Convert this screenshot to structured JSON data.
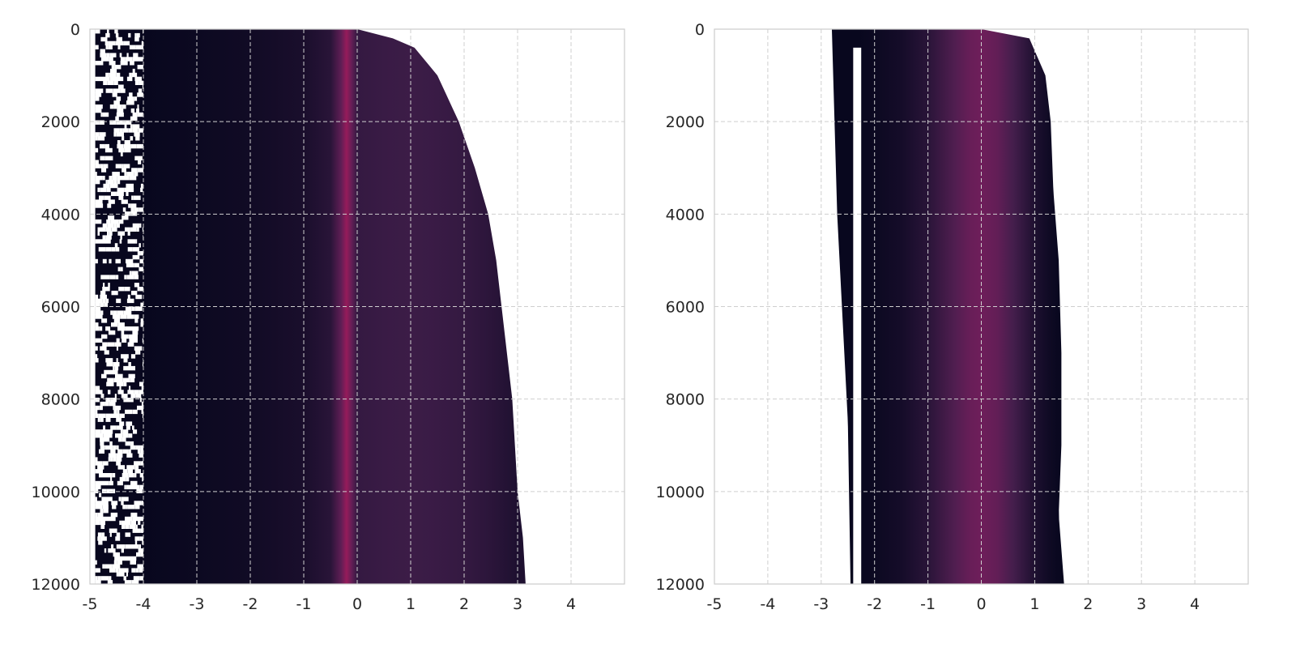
{
  "chart_data": [
    {
      "type": "heatmap",
      "panel": "left",
      "xlim": [
        -5,
        5
      ],
      "ylim": [
        0,
        12000
      ],
      "y_inverted": true,
      "xticks": [
        -5,
        -4,
        -3,
        -2,
        -1,
        0,
        1,
        2,
        3,
        4
      ],
      "xtick_labels": [
        "-5",
        "-4",
        "-3",
        "-2",
        "-1",
        "0",
        "1",
        "2",
        "3",
        "4"
      ],
      "yticks": [
        0,
        2000,
        4000,
        6000,
        8000,
        10000,
        12000
      ],
      "ytick_labels": [
        "0",
        "2000",
        "4000",
        "6000",
        "8000",
        "10000",
        "12000"
      ],
      "grid": true,
      "colormap": "rocket",
      "peak_center": -0.2,
      "profile": [
        {
          "x": -4.0,
          "v": 0.02
        },
        {
          "x": -3.0,
          "v": 0.04
        },
        {
          "x": -2.0,
          "v": 0.06
        },
        {
          "x": -1.0,
          "v": 0.1
        },
        {
          "x": -0.5,
          "v": 0.16
        },
        {
          "x": -0.3,
          "v": 0.35
        },
        {
          "x": -0.2,
          "v": 0.5
        },
        {
          "x": -0.1,
          "v": 0.36
        },
        {
          "x": 0.0,
          "v": 0.2
        },
        {
          "x": 0.5,
          "v": 0.22
        },
        {
          "x": 1.0,
          "v": 0.23
        },
        {
          "x": 1.5,
          "v": 0.22
        },
        {
          "x": 2.0,
          "v": 0.2
        },
        {
          "x": 2.5,
          "v": 0.17
        },
        {
          "x": 3.0,
          "v": 0.12
        }
      ],
      "left_edge": [
        {
          "y": 0,
          "x": -4.9
        },
        {
          "y": 12000,
          "x": -4.9
        }
      ],
      "solid_left_edge": -4.0,
      "right_edge": [
        {
          "y": 0,
          "x": 0.0
        },
        {
          "y": 300,
          "x": 1.0
        },
        {
          "y": 1000,
          "x": 1.5
        },
        {
          "y": 2000,
          "x": 1.9
        },
        {
          "y": 3000,
          "x": 2.2
        },
        {
          "y": 4000,
          "x": 2.45
        },
        {
          "y": 5000,
          "x": 2.6
        },
        {
          "y": 6000,
          "x": 2.7
        },
        {
          "y": 7000,
          "x": 2.8
        },
        {
          "y": 8000,
          "x": 2.9
        },
        {
          "y": 9000,
          "x": 2.95
        },
        {
          "y": 10000,
          "x": 3.0
        },
        {
          "y": 11000,
          "x": 3.1
        },
        {
          "y": 12000,
          "x": 3.15
        }
      ]
    },
    {
      "type": "heatmap",
      "panel": "right",
      "xlim": [
        -5,
        5
      ],
      "ylim": [
        0,
        12000
      ],
      "y_inverted": true,
      "xticks": [
        -5,
        -4,
        -3,
        -2,
        -1,
        0,
        1,
        2,
        3,
        4
      ],
      "xtick_labels": [
        "-5",
        "-4",
        "-3",
        "-2",
        "-1",
        "0",
        "1",
        "2",
        "3",
        "4"
      ],
      "yticks": [
        0,
        2000,
        4000,
        6000,
        8000,
        10000,
        12000
      ],
      "ytick_labels": [
        "0",
        "2000",
        "4000",
        "6000",
        "8000",
        "10000",
        "12000"
      ],
      "grid": true,
      "colormap": "rocket",
      "peak_center": 0.0,
      "profile": [
        {
          "x": -2.3,
          "v": 0.02
        },
        {
          "x": -2.0,
          "v": 0.04
        },
        {
          "x": -1.5,
          "v": 0.08
        },
        {
          "x": -1.0,
          "v": 0.16
        },
        {
          "x": -0.5,
          "v": 0.3
        },
        {
          "x": -0.2,
          "v": 0.38
        },
        {
          "x": 0.0,
          "v": 0.4
        },
        {
          "x": 0.3,
          "v": 0.36
        },
        {
          "x": 0.6,
          "v": 0.26
        },
        {
          "x": 1.0,
          "v": 0.12
        },
        {
          "x": 1.3,
          "v": 0.05
        },
        {
          "x": 1.6,
          "v": 0.01
        }
      ],
      "left_edge": [
        {
          "y": 0,
          "x": -2.8
        },
        {
          "y": 4000,
          "x": -2.7
        },
        {
          "y": 8500,
          "x": -2.5
        },
        {
          "y": 12000,
          "x": -2.45
        }
      ],
      "gap": [
        -2.4,
        -2.25
      ],
      "right_edge": [
        {
          "y": 0,
          "x": 0.0
        },
        {
          "y": 200,
          "x": 0.9
        },
        {
          "y": 1000,
          "x": 1.2
        },
        {
          "y": 2000,
          "x": 1.3
        },
        {
          "y": 3500,
          "x": 1.35
        },
        {
          "y": 5000,
          "x": 1.45
        },
        {
          "y": 7000,
          "x": 1.5
        },
        {
          "y": 9000,
          "x": 1.5
        },
        {
          "y": 10500,
          "x": 1.45
        },
        {
          "y": 12000,
          "x": 1.55
        }
      ]
    }
  ]
}
